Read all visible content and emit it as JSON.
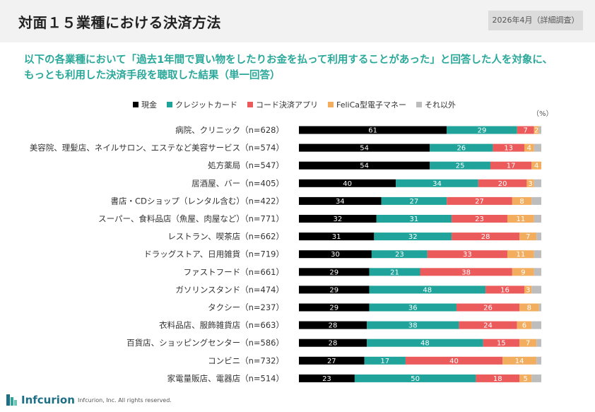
{
  "header": {
    "title": "対面１５業種における決済方法",
    "date_badge": "2026年4月（詳細調査）"
  },
  "subtitle_line1": "以下の各業種において「過去1年間で買い物をしたりお金を払って利用することがあった」と回答した人を対象に、",
  "subtitle_line2": "もっとも利用した決済手段を聴取した結果（単一回答）",
  "unit_label": "（%）",
  "colors": {
    "cash": "#000000",
    "credit": "#1fa39a",
    "qr": "#eb5b5b",
    "felica": "#f2ad5e",
    "other": "#bdbdbd"
  },
  "footer": {
    "logo_text": "Infcurion",
    "copyright": "Infcurion, Inc.  All rights reserved."
  },
  "chart_data": {
    "type": "bar",
    "orientation": "horizontal",
    "stacked": "percent",
    "categories": [
      "病院、クリニック（n=628）",
      "美容院、理髪店、ネイルサロン、エステなど美容サービス（n=574）",
      "処方薬局（n=547）",
      "居酒屋、バー（n=405）",
      "書店・CDショップ（レンタル含む）（n=422）",
      "スーパー、食料品店（魚屋、肉屋など）（n=771）",
      "レストラン、喫茶店（n=662）",
      "ドラッグストア、日用雑貨（n=719）",
      "ファストフード（n=661）",
      "ガソリンスタンド（n=474）",
      "タクシー（n=237）",
      "衣料品店、服飾雑貨店（n=663）",
      "百貨店、ショッピングセンター（n=586）",
      "コンビニ（n=732）",
      "家電量販店、電器店（n=514）"
    ],
    "series": [
      {
        "name": "現金",
        "color": "#000000",
        "label_color": "#ffffff",
        "values": [
          61,
          54,
          54,
          40,
          34,
          32,
          31,
          30,
          29,
          29,
          29,
          28,
          28,
          27,
          23
        ]
      },
      {
        "name": "クレジットカード",
        "color": "#1fa39a",
        "label_color": "#ffffff",
        "values": [
          29,
          26,
          25,
          34,
          27,
          31,
          32,
          23,
          21,
          48,
          36,
          38,
          48,
          17,
          50
        ]
      },
      {
        "name": "コード決済アプリ",
        "color": "#eb5b5b",
        "label_color": "#ffffff",
        "values": [
          7,
          13,
          17,
          20,
          27,
          23,
          28,
          33,
          38,
          16,
          26,
          24,
          15,
          40,
          18
        ]
      },
      {
        "name": "FeliCa型電子マネー",
        "color": "#f2ad5e",
        "label_color": "#ffffff",
        "values": [
          2,
          4,
          4,
          3,
          8,
          11,
          7,
          11,
          9,
          3,
          8,
          6,
          7,
          14,
          5
        ]
      },
      {
        "name": "それ以外",
        "color": "#bdbdbd",
        "label_color": "#ffffff",
        "values": [
          1,
          3,
          0,
          3,
          4,
          3,
          2,
          3,
          3,
          4,
          1,
          4,
          2,
          2,
          4
        ]
      }
    ],
    "show_labels": [
      [
        true,
        true,
        true,
        true,
        false
      ],
      [
        true,
        true,
        true,
        true,
        false
      ],
      [
        true,
        true,
        true,
        true,
        false
      ],
      [
        true,
        true,
        true,
        true,
        false
      ],
      [
        true,
        true,
        true,
        true,
        false
      ],
      [
        true,
        true,
        true,
        true,
        false
      ],
      [
        true,
        true,
        true,
        true,
        false
      ],
      [
        true,
        true,
        true,
        true,
        false
      ],
      [
        true,
        true,
        true,
        true,
        false
      ],
      [
        true,
        true,
        true,
        true,
        false
      ],
      [
        true,
        true,
        true,
        true,
        false
      ],
      [
        true,
        true,
        true,
        true,
        false
      ],
      [
        true,
        true,
        true,
        true,
        false
      ],
      [
        true,
        true,
        true,
        true,
        false
      ],
      [
        true,
        true,
        true,
        true,
        false
      ]
    ],
    "xlim": [
      0,
      100
    ],
    "grid": false,
    "legend_position": "top"
  }
}
